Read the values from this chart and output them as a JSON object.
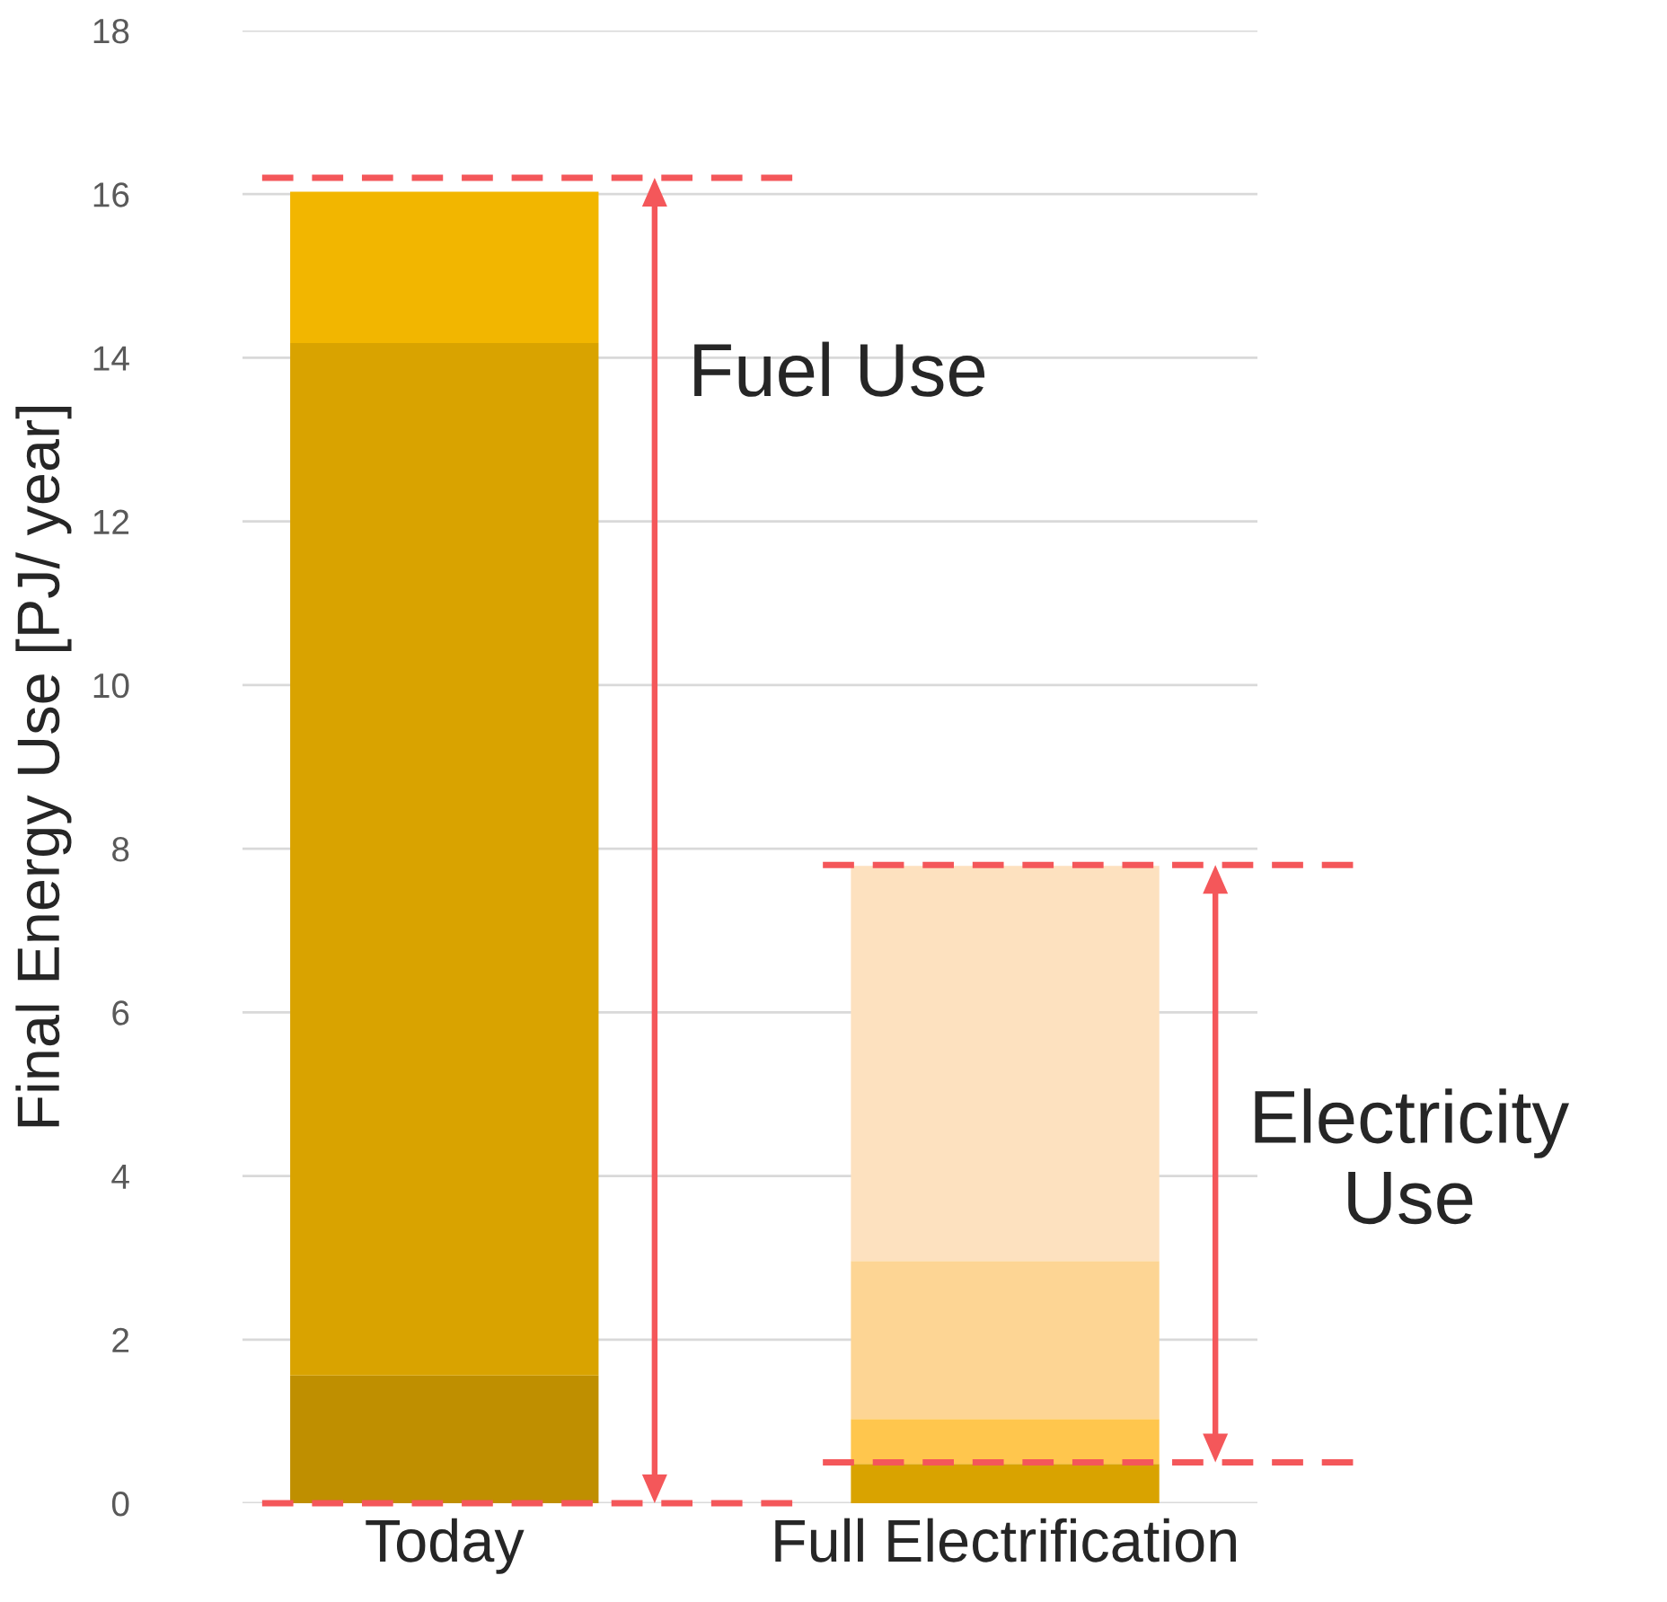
{
  "chart_data": {
    "type": "bar",
    "stacked": true,
    "ylabel": "Final Energy Use [PJ/ year]",
    "categories": [
      "Today",
      "Full Electrification"
    ],
    "series": [
      {
        "values": [
          1.56,
          0.48
        ],
        "colors": [
          "#bf8f00",
          "#d9a300"
        ]
      },
      {
        "values": [
          12.62,
          0.55
        ],
        "colors": [
          "#d9a300",
          "#ffc64d"
        ]
      },
      {
        "values": [
          1.85,
          1.93
        ],
        "colors": [
          "#f2b600",
          "#fdd594"
        ]
      },
      {
        "values": [
          null,
          4.83
        ],
        "colors": [
          null,
          "#fde1bf"
        ]
      }
    ],
    "ylim": [
      0,
      18
    ],
    "yticks": [
      0,
      2,
      4,
      6,
      8,
      10,
      12,
      14,
      16,
      18
    ],
    "grid": "y",
    "ref_lines": [
      {
        "axis": "y",
        "value": 16.2,
        "color": "#f4575a",
        "line_style": "dashed"
      },
      {
        "axis": "y",
        "value": 0,
        "color": "#f4575a",
        "line_style": "dashed"
      },
      {
        "axis": "y",
        "value": 7.8,
        "color": "#f4575a",
        "line_style": "dashed"
      },
      {
        "axis": "y",
        "value": 0.5,
        "color": "#f4575a",
        "line_style": "dashed"
      }
    ],
    "annotations": [
      "Fuel Use",
      "Electricity\nUse"
    ]
  }
}
